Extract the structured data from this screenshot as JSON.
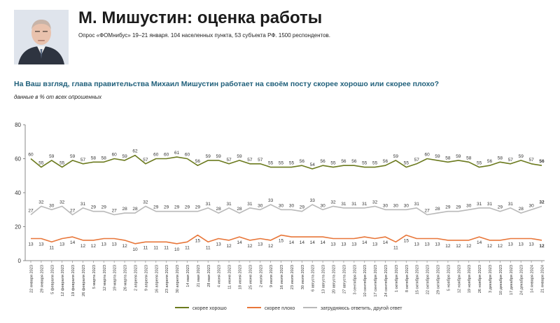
{
  "header": {
    "title": "М. Мишустин: оценка работы",
    "subtitle": "Опрос «ФОМнибус» 19–21 января. 104 населенных пункта, 53 субъекта РФ. 1500 респондентов."
  },
  "question": "На Ваш взгляд, глава правительства Михаил Мишустин работает на своём посту скорее хорошо или скорее плохо?",
  "note": "данные в % от всех опрошенных",
  "photo": {
    "icon": "person-portrait-icon"
  },
  "chart_data": {
    "type": "line",
    "ylim": [
      0,
      80
    ],
    "yticks": [
      0,
      20,
      40,
      60,
      80
    ],
    "grid": false,
    "legend_position": "bottom-center",
    "x": [
      "22 января 2023",
      "29 января 2023",
      "5 февраля 2023",
      "12 февраля 2023",
      "19 февраля 2023",
      "26 февраля 2023",
      "5 марта 2023",
      "12 марта 2023",
      "19 марта 2023",
      "26 марта 2023",
      "2 апреля 2023",
      "9 апреля 2023",
      "16 апреля 2023",
      "23 апреля 2023",
      "30 апреля 2023",
      "14 мая 2023",
      "21 мая 2023",
      "28 мая 2023",
      "4 июня 2023",
      "11 июня 2023",
      "18 июня 2023",
      "25 июня 2023",
      "2 июля 2023",
      "9 июля 2023",
      "16 июля 2023",
      "23 июля 2023",
      "30 июля 2023",
      "6 августа 2023",
      "13 августа 2023",
      "20 августа 2023",
      "27 августа 2023",
      "3 сентября 2023",
      "10 сентября 2023",
      "17 сентября 2023",
      "24 сентября 2023",
      "1 октября 2023",
      "8 октября 2023",
      "15 октября 2023",
      "22 октября 2023",
      "29 октября 2023",
      "5 ноября 2023",
      "12 ноября 2023",
      "19 ноября 2023",
      "26 ноября 2023",
      "3 декабря 2023",
      "10 декабря 2023",
      "17 декабря 2023",
      "24 декабря 2023",
      "14 января 2024",
      "21 января 2024"
    ],
    "series": [
      {
        "name": "скорее хорошо",
        "color": "#6b7a1e",
        "values": [
          60,
          55,
          59,
          55,
          59,
          57,
          58,
          58,
          60,
          59,
          62,
          57,
          60,
          60,
          61,
          60,
          56,
          59,
          59,
          57,
          59,
          57,
          57,
          55,
          55,
          55,
          56,
          54,
          56,
          55,
          56,
          56,
          55,
          55,
          56,
          59,
          55,
          57,
          60,
          59,
          58,
          59,
          58,
          55,
          56,
          58,
          57,
          59,
          57,
          56
        ]
      },
      {
        "name": "скорее плохо",
        "color": "#e8773a",
        "values": [
          13,
          13,
          11,
          13,
          14,
          12,
          12,
          13,
          13,
          12,
          10,
          11,
          11,
          11,
          10,
          11,
          15,
          11,
          13,
          12,
          14,
          12,
          13,
          12,
          15,
          14,
          14,
          14,
          14,
          13,
          13,
          13,
          14,
          13,
          14,
          11,
          15,
          13,
          13,
          13,
          12,
          12,
          12,
          14,
          12,
          12,
          13,
          13,
          13,
          12
        ]
      },
      {
        "name": "затрудняюсь ответить, другой ответ",
        "color": "#b9b9b9",
        "values": [
          27,
          32,
          30,
          32,
          27,
          31,
          29,
          29,
          27,
          28,
          28,
          32,
          29,
          29,
          29,
          29,
          29,
          31,
          28,
          31,
          28,
          31,
          30,
          33,
          30,
          30,
          29,
          33,
          30,
          32,
          31,
          31,
          31,
          32,
          30,
          30,
          30,
          31,
          27,
          28,
          29,
          29,
          30,
          31,
          31,
          29,
          31,
          28,
          30,
          32
        ]
      }
    ]
  }
}
